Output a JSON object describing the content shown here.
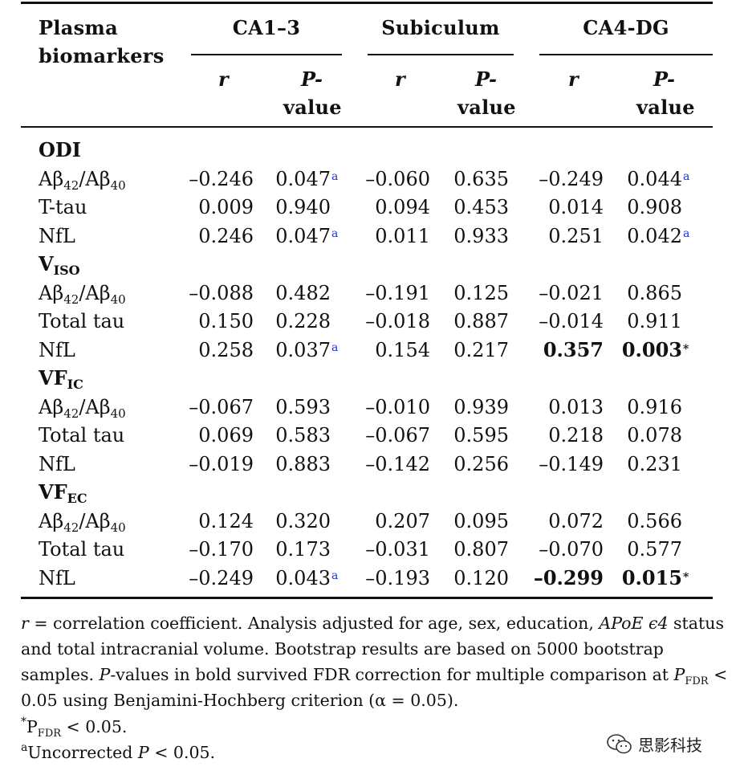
{
  "table": {
    "header": {
      "col0": "Plasma biomarkers",
      "col0_line1": "Plasma",
      "col0_line2": "biomarkers",
      "groups": [
        "CA1–3",
        "Subiculum",
        "CA4-DG"
      ],
      "r_label": "r",
      "p_label_line1": "P-",
      "p_label_line2": "value"
    },
    "sections": [
      {
        "name": "ODI",
        "sub": "",
        "rows": [
          {
            "label": "Aβ42/Aβ40",
            "vals": [
              "–0.246",
              "0.047",
              "–0.060",
              "0.635",
              "–0.249",
              "0.044"
            ],
            "marks": [
              "",
              "a",
              "",
              "",
              "",
              "a"
            ],
            "bold": [
              false,
              false,
              false,
              false,
              false,
              false
            ]
          },
          {
            "label": "T-tau",
            "vals": [
              "0.009",
              "0.940",
              "0.094",
              "0.453",
              "0.014",
              "0.908"
            ],
            "marks": [
              "",
              "",
              "",
              "",
              "",
              ""
            ],
            "bold": [
              false,
              false,
              false,
              false,
              false,
              false
            ]
          },
          {
            "label": "NfL",
            "vals": [
              "0.246",
              "0.047",
              "0.011",
              "0.933",
              "0.251",
              "0.042"
            ],
            "marks": [
              "",
              "a",
              "",
              "",
              "",
              "a"
            ],
            "bold": [
              false,
              false,
              false,
              false,
              false,
              false
            ]
          }
        ]
      },
      {
        "name": "V",
        "sub": "ISO",
        "rows": [
          {
            "label": "Aβ42/Aβ40",
            "vals": [
              "–0.088",
              "0.482",
              "–0.191",
              "0.125",
              "–0.021",
              "0.865"
            ],
            "marks": [
              "",
              "",
              "",
              "",
              "",
              ""
            ],
            "bold": [
              false,
              false,
              false,
              false,
              false,
              false
            ]
          },
          {
            "label": "Total tau",
            "vals": [
              "0.150",
              "0.228",
              "–0.018",
              "0.887",
              "–0.014",
              "0.911"
            ],
            "marks": [
              "",
              "",
              "",
              "",
              "",
              ""
            ],
            "bold": [
              false,
              false,
              false,
              false,
              false,
              false
            ]
          },
          {
            "label": "NfL",
            "vals": [
              "0.258",
              "0.037",
              "0.154",
              "0.217",
              "0.357",
              "0.003"
            ],
            "marks": [
              "",
              "a",
              "",
              "",
              "",
              "*"
            ],
            "bold": [
              false,
              false,
              false,
              false,
              true,
              true
            ]
          }
        ]
      },
      {
        "name": "VF",
        "sub": "IC",
        "rows": [
          {
            "label": "Aβ42/Aβ40",
            "vals": [
              "–0.067",
              "0.593",
              "–0.010",
              "0.939",
              "0.013",
              "0.916"
            ],
            "marks": [
              "",
              "",
              "",
              "",
              "",
              ""
            ],
            "bold": [
              false,
              false,
              false,
              false,
              false,
              false
            ]
          },
          {
            "label": "Total tau",
            "vals": [
              "0.069",
              "0.583",
              "–0.067",
              "0.595",
              "0.218",
              "0.078"
            ],
            "marks": [
              "",
              "",
              "",
              "",
              "",
              ""
            ],
            "bold": [
              false,
              false,
              false,
              false,
              false,
              false
            ]
          },
          {
            "label": "NfL",
            "vals": [
              "–0.019",
              "0.883",
              "–0.142",
              "0.256",
              "–0.149",
              "0.231"
            ],
            "marks": [
              "",
              "",
              "",
              "",
              "",
              ""
            ],
            "bold": [
              false,
              false,
              false,
              false,
              false,
              false
            ]
          }
        ]
      },
      {
        "name": "VF",
        "sub": "EC",
        "rows": [
          {
            "label": "Aβ42/Aβ40",
            "vals": [
              "0.124",
              "0.320",
              "0.207",
              "0.095",
              "0.072",
              "0.566"
            ],
            "marks": [
              "",
              "",
              "",
              "",
              "",
              ""
            ],
            "bold": [
              false,
              false,
              false,
              false,
              false,
              false
            ]
          },
          {
            "label": "Total tau",
            "vals": [
              "–0.170",
              "0.173",
              "–0.031",
              "0.807",
              "–0.070",
              "0.577"
            ],
            "marks": [
              "",
              "",
              "",
              "",
              "",
              ""
            ],
            "bold": [
              false,
              false,
              false,
              false,
              false,
              false
            ]
          },
          {
            "label": "NfL",
            "vals": [
              "–0.249",
              "0.043",
              "–0.193",
              "0.120",
              "–0.299",
              "0.015"
            ],
            "marks": [
              "",
              "a",
              "",
              "",
              "",
              "*"
            ],
            "bold": [
              false,
              false,
              false,
              false,
              true,
              true
            ]
          }
        ]
      }
    ]
  },
  "footnotes": {
    "line1_a": " = correlation coefficient. Analysis adjusted for age, sex, education, ",
    "line1_r": "r",
    "line1_apoe": "APoE ϵ4",
    "line1_b": " status",
    "line2": "and total intracranial volume. Bootstrap results are based on 5000 bootstrap",
    "line3_a": "samples. ",
    "line3_p": "P",
    "line3_b": "-values in bold survived FDR correction for multiple comparison at ",
    "line3_pfdr": "P",
    "line3_fdr": "FDR",
    "line3_c": " <",
    "line4": "0.05 using Benjamini-Hochberg criterion (α = 0.05).",
    "line5_star": "*",
    "line5_p": "P",
    "line5_fdr": "FDR",
    "line5_rest": " < 0.05.",
    "line6_a": "a",
    "line6_text": "Uncorrected ",
    "line6_p": "P",
    "line6_rest": " < 0.05."
  },
  "watermark": {
    "text": "思影科技",
    "icon": "wechat-icon"
  }
}
